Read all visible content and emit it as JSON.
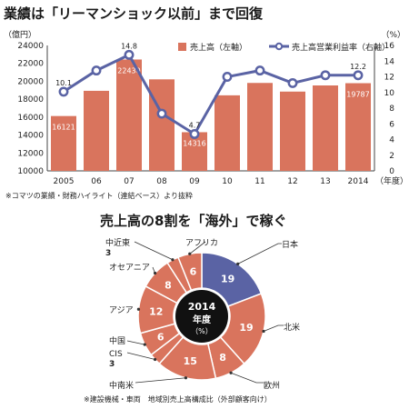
{
  "title1": "業績は「リーマンショック以前」まで回復",
  "note1": "※コマツの業績・財務ハイライト（連結ベース）より抜粋",
  "title2": "売上高の8割を「海外」で稼ぐ",
  "note2": "※建設機械・車両　地域別売上高構成比（外部顧客向け）",
  "chart_data": [
    {
      "type": "bar",
      "categories": [
        "2005",
        "06",
        "07",
        "08",
        "09",
        "10",
        "11",
        "12",
        "13",
        "2014"
      ],
      "x_suffix": "（年度）",
      "series": [
        {
          "name": "売上高（左軸）",
          "axis": "left",
          "type": "bar",
          "values": [
            16121,
            18935,
            22430,
            20215,
            14316,
            18432,
            19815,
            18849,
            19537,
            19787
          ],
          "labels": {
            "0": "16121",
            "2": "22430",
            "4": "14316",
            "9": "19787"
          }
        },
        {
          "name": "売上高営業利益率（右軸）",
          "axis": "right",
          "type": "line",
          "values": [
            10.1,
            12.8,
            14.8,
            7.3,
            4.7,
            12.0,
            12.8,
            11.2,
            12.2,
            12.2
          ],
          "labels": {
            "0": "10.1",
            "2": "14.8",
            "4": "4.7",
            "9": "12.2"
          }
        }
      ],
      "left_axis": {
        "unit": "（億円）",
        "ylim": [
          10000,
          24000
        ],
        "ticks": [
          10000,
          12000,
          14000,
          16000,
          18000,
          20000,
          22000,
          24000
        ]
      },
      "right_axis": {
        "unit": "（%）",
        "ylim": [
          0,
          16
        ],
        "ticks": [
          0,
          2,
          4,
          6,
          8,
          10,
          12,
          14,
          16
        ]
      },
      "grid": false,
      "legend": "top-right",
      "colors": {
        "bar": "#d9745d",
        "line": "#5a63a4"
      }
    },
    {
      "type": "pie",
      "variant": "donut",
      "center": [
        "2014",
        "年度",
        "（%）"
      ],
      "slices": [
        {
          "label": "日本",
          "value": 19,
          "color": "#5a63a4"
        },
        {
          "label": "北米",
          "value": 19,
          "color": "#d9745d"
        },
        {
          "label": "欧州",
          "value": 8,
          "color": "#d9745d"
        },
        {
          "label": "中南米",
          "value": 15,
          "color": "#d9745d"
        },
        {
          "label": "CIS",
          "value": 3,
          "color": "#d9745d"
        },
        {
          "label": "中国",
          "value": 6,
          "color": "#d9745d"
        },
        {
          "label": "アジア",
          "value": 12,
          "color": "#d9745d"
        },
        {
          "label": "オセアニア",
          "value": 8,
          "color": "#d9745d"
        },
        {
          "label": "中近東",
          "value": 3,
          "color": "#d9745d"
        },
        {
          "label": "アフリカ",
          "value": 6,
          "color": "#d9745d"
        }
      ]
    }
  ]
}
